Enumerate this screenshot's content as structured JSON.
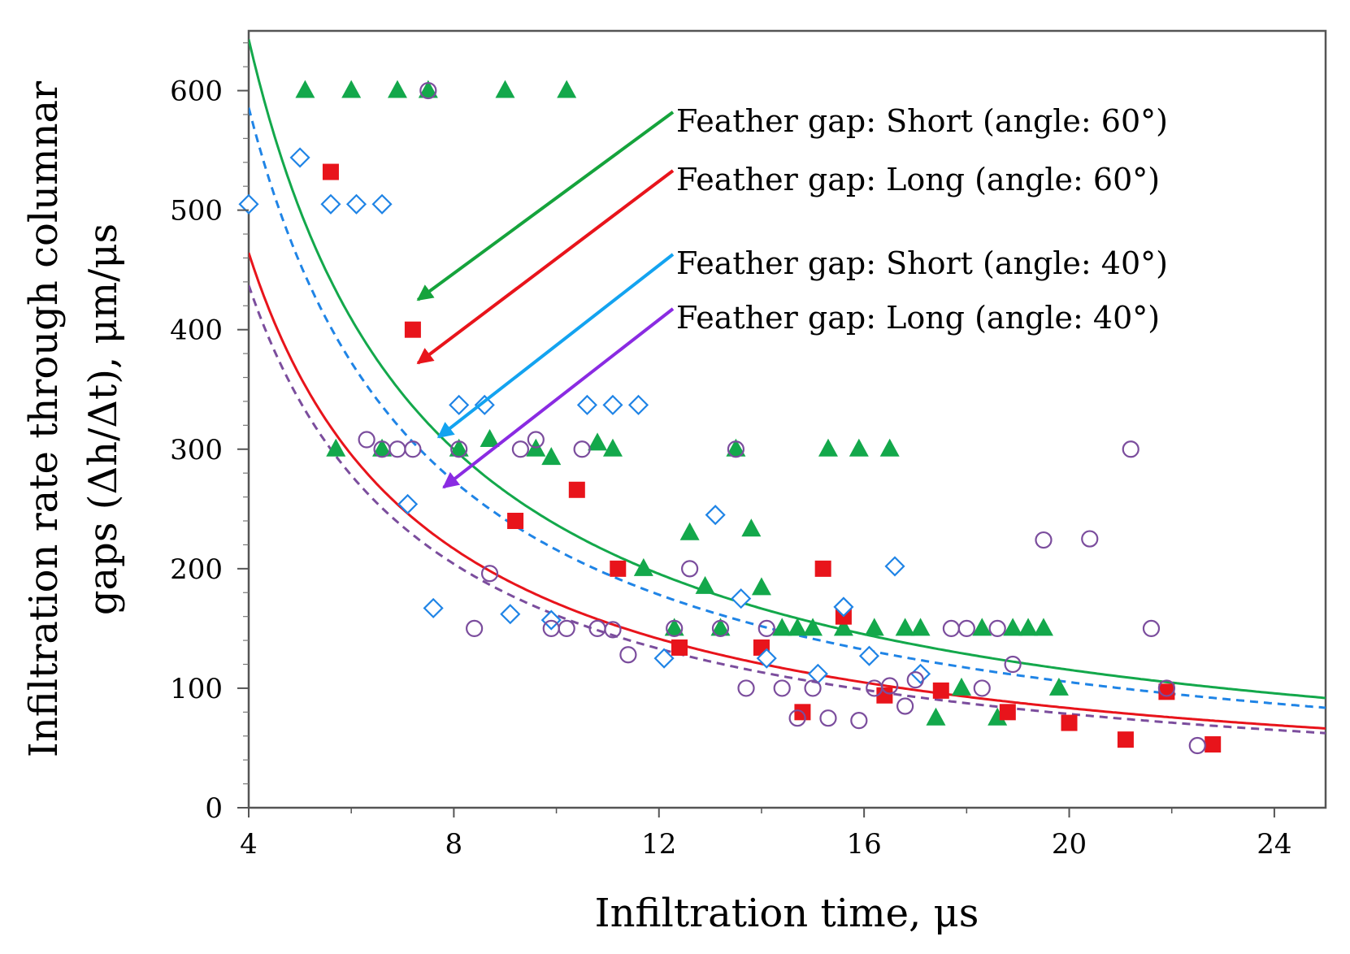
{
  "chart_data": {
    "type": "scatter",
    "title": "",
    "xlabel": "Infiltration time, μs",
    "ylabel_lines": [
      "Infiltration rate through columnar",
      "gaps (Δh/Δt), μm/μs"
    ],
    "xlim": [
      4,
      25
    ],
    "ylim": [
      0,
      650
    ],
    "xticks": [
      "4",
      "8",
      "12",
      "16",
      "20",
      "24"
    ],
    "yticks": [
      "0",
      "100",
      "200",
      "300",
      "400",
      "500",
      "600"
    ],
    "grid": false,
    "series": [
      {
        "name": "Feather gap: Short (angle: 60°)",
        "marker": "triangle",
        "color": "#13a84b",
        "fit_coeff": 2250,
        "fit_style": "solid",
        "points": [
          [
            5.1,
            600
          ],
          [
            6.0,
            600
          ],
          [
            6.9,
            600
          ],
          [
            7.5,
            600
          ],
          [
            9.0,
            600
          ],
          [
            10.2,
            600
          ],
          [
            5.7,
            300
          ],
          [
            6.6,
            300
          ],
          [
            8.1,
            300
          ],
          [
            8.7,
            308
          ],
          [
            9.6,
            300
          ],
          [
            9.9,
            293
          ],
          [
            10.8,
            305
          ],
          [
            11.1,
            300
          ],
          [
            13.5,
            300
          ],
          [
            15.3,
            300
          ],
          [
            15.9,
            300
          ],
          [
            16.5,
            300
          ],
          [
            11.7,
            200
          ],
          [
            12.6,
            230
          ],
          [
            12.9,
            185
          ],
          [
            13.8,
            233
          ],
          [
            14.0,
            184
          ],
          [
            12.3,
            150
          ],
          [
            13.2,
            150
          ],
          [
            14.4,
            150
          ],
          [
            14.7,
            150
          ],
          [
            15.0,
            150
          ],
          [
            15.6,
            150
          ],
          [
            16.2,
            150
          ],
          [
            16.8,
            150
          ],
          [
            17.1,
            150
          ],
          [
            18.3,
            150
          ],
          [
            18.9,
            150
          ],
          [
            19.2,
            150
          ],
          [
            19.5,
            150
          ],
          [
            17.4,
            75
          ],
          [
            17.9,
            100
          ],
          [
            18.6,
            75
          ],
          [
            19.8,
            100
          ]
        ]
      },
      {
        "name": "Feather gap: Long (angle: 60°)",
        "marker": "square",
        "color": "#e8141b",
        "fit_coeff": 1625,
        "fit_style": "solid",
        "points": [
          [
            5.6,
            532
          ],
          [
            7.2,
            400
          ],
          [
            9.2,
            240
          ],
          [
            10.4,
            266
          ],
          [
            11.2,
            200
          ],
          [
            12.4,
            134
          ],
          [
            14.0,
            134
          ],
          [
            15.2,
            200
          ],
          [
            15.6,
            160
          ],
          [
            14.8,
            80
          ],
          [
            16.4,
            94
          ],
          [
            17.5,
            98
          ],
          [
            18.8,
            80
          ],
          [
            20.0,
            71
          ],
          [
            21.1,
            57
          ],
          [
            21.9,
            97
          ],
          [
            22.8,
            53
          ]
        ]
      },
      {
        "name": "Feather gap: Short (angle: 40°)",
        "marker": "diamond",
        "color": "#1f84e6",
        "fit_coeff": 2050,
        "fit_style": "dashed",
        "points": [
          [
            4.0,
            505
          ],
          [
            5.0,
            544
          ],
          [
            5.6,
            505
          ],
          [
            6.1,
            505
          ],
          [
            6.6,
            505
          ],
          [
            7.1,
            254
          ],
          [
            7.6,
            167
          ],
          [
            8.1,
            337
          ],
          [
            8.6,
            337
          ],
          [
            9.1,
            162
          ],
          [
            9.9,
            157
          ],
          [
            10.6,
            337
          ],
          [
            11.1,
            337
          ],
          [
            11.6,
            337
          ],
          [
            12.1,
            125
          ],
          [
            13.1,
            245
          ],
          [
            13.6,
            175
          ],
          [
            14.1,
            125
          ],
          [
            15.1,
            112
          ],
          [
            15.6,
            168
          ],
          [
            16.1,
            127
          ],
          [
            16.6,
            202
          ],
          [
            17.1,
            112
          ]
        ]
      },
      {
        "name": "Feather gap: Long (angle: 40°)",
        "marker": "circle",
        "color": "#7b4d9d",
        "fit_coeff": 1530,
        "fit_style": "dashed",
        "points": [
          [
            6.3,
            308
          ],
          [
            6.6,
            300
          ],
          [
            6.9,
            300
          ],
          [
            7.2,
            300
          ],
          [
            7.5,
            600
          ],
          [
            8.1,
            300
          ],
          [
            8.4,
            150
          ],
          [
            8.7,
            196
          ],
          [
            9.3,
            300
          ],
          [
            9.6,
            308
          ],
          [
            9.9,
            150
          ],
          [
            10.2,
            150
          ],
          [
            10.5,
            300
          ],
          [
            10.8,
            150
          ],
          [
            11.1,
            149
          ],
          [
            11.4,
            128
          ],
          [
            12.3,
            150
          ],
          [
            12.6,
            200
          ],
          [
            13.2,
            150
          ],
          [
            13.5,
            300
          ],
          [
            13.7,
            100
          ],
          [
            14.1,
            150
          ],
          [
            14.4,
            100
          ],
          [
            14.7,
            75
          ],
          [
            15.0,
            100
          ],
          [
            15.3,
            75
          ],
          [
            15.9,
            73
          ],
          [
            16.2,
            100
          ],
          [
            16.5,
            102
          ],
          [
            16.8,
            85
          ],
          [
            17.0,
            107
          ],
          [
            17.7,
            150
          ],
          [
            18.0,
            150
          ],
          [
            18.3,
            100
          ],
          [
            18.6,
            150
          ],
          [
            18.9,
            120
          ],
          [
            19.5,
            224
          ],
          [
            20.4,
            225
          ],
          [
            21.2,
            300
          ],
          [
            21.6,
            150
          ],
          [
            22.5,
            52
          ],
          [
            21.9,
            100
          ]
        ]
      }
    ],
    "annotations": [
      {
        "text": "Feather gap: Short (angle: 60°)",
        "color": "#15a33c",
        "target": [
          7.3,
          425
        ]
      },
      {
        "text": "Feather gap: Long (angle: 60°)",
        "color": "#e8141b",
        "target": [
          7.3,
          372
        ]
      },
      {
        "text": "Feather gap: Short (angle: 40°)",
        "color": "#13a3f0",
        "target": [
          7.7,
          310
        ]
      },
      {
        "text": "Feather gap: Long (angle: 40°)",
        "color": "#8a2be2",
        "target": [
          7.8,
          268
        ]
      }
    ]
  }
}
